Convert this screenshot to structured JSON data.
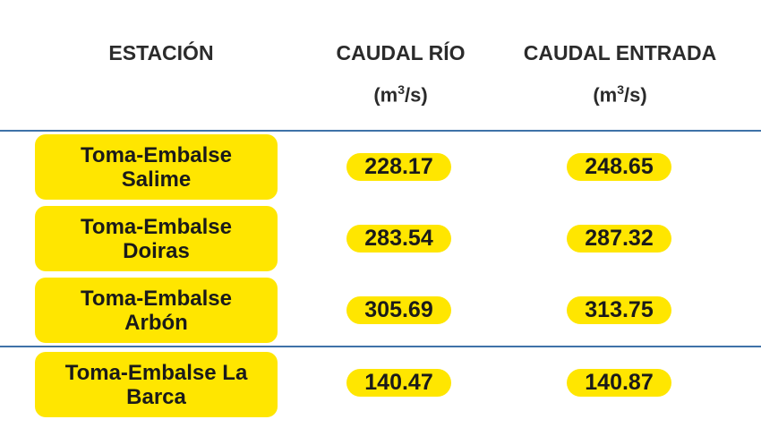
{
  "header": {
    "station": "ESTACIÓN",
    "caudal_rio": "CAUDAL RÍO",
    "caudal_entrada": "CAUDAL ENTRADA",
    "unit_base": "(m",
    "unit_exp": "3",
    "unit_tail": "/s)"
  },
  "rows": [
    {
      "station_line1": "Toma-Embalse",
      "station_line2": "Salime",
      "caudal_rio": "228.17",
      "caudal_entrada": "248.65"
    },
    {
      "station_line1": "Toma-Embalse",
      "station_line2": "Doiras",
      "caudal_rio": "283.54",
      "caudal_entrada": "287.32"
    },
    {
      "station_line1": "Toma-Embalse",
      "station_line2": "Arbón",
      "caudal_rio": "305.69",
      "caudal_entrada": "313.75"
    },
    {
      "station_line1": "Toma-Embalse La",
      "station_line2": "Barca",
      "caudal_rio": "140.47",
      "caudal_entrada": "140.87"
    }
  ],
  "colors": {
    "highlight": "#ffe600",
    "rule": "#3f72a8",
    "text": "#1a1a1a"
  }
}
